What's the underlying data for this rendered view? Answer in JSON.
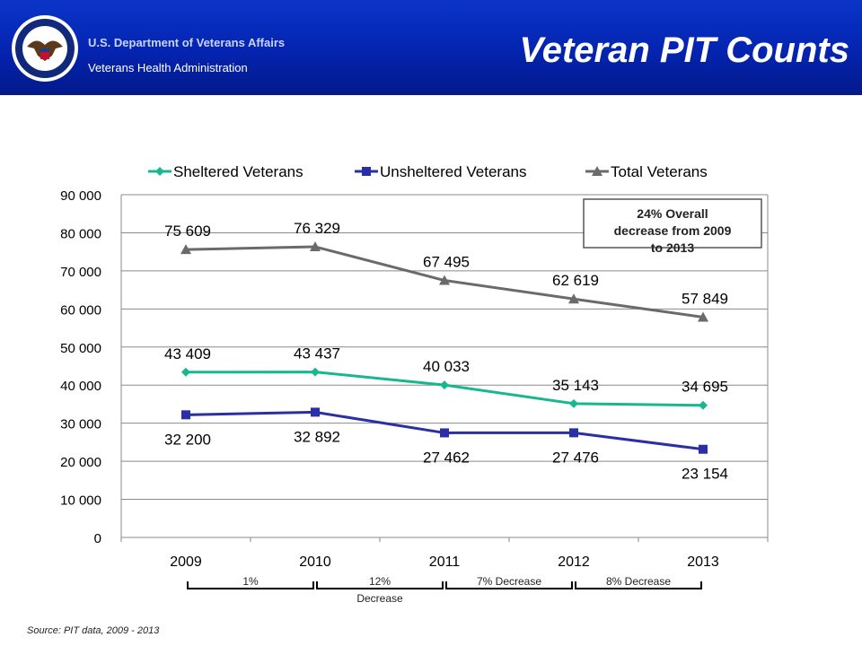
{
  "header": {
    "org_line1": "U.S. Department of Veterans Affairs",
    "org_line2": "Veterans Health Administration",
    "title": "Veteran PIT Counts",
    "colors": {
      "background": "#0424b0",
      "title_text": "#ffffff"
    },
    "logo": "va-seal-icon"
  },
  "chart_data": {
    "type": "line",
    "title": "",
    "xlabel": "",
    "ylabel": "",
    "categories": [
      "2009",
      "2010",
      "2011",
      "2012",
      "2013"
    ],
    "ylim": [
      0,
      90000
    ],
    "yticks": [
      0,
      10000,
      20000,
      30000,
      40000,
      50000,
      60000,
      70000,
      80000,
      90000
    ],
    "ytick_labels": [
      "0",
      "10 000",
      "20 000",
      "30 000",
      "40 000",
      "50 000",
      "60 000",
      "70 000",
      "80 000",
      "90 000"
    ],
    "grid": true,
    "legend_position": "top",
    "series": [
      {
        "name": "Sheltered Veterans",
        "color": "#17b890",
        "marker": "diamond",
        "values": [
          43409,
          43437,
          40033,
          35143,
          34695
        ],
        "labels": [
          "43 409",
          "43 437",
          "40 033",
          "35 143",
          "34 695"
        ]
      },
      {
        "name": "Unsheltered Veterans",
        "color": "#2a2fa6",
        "marker": "square",
        "values": [
          32200,
          32892,
          27462,
          27476,
          23154
        ],
        "labels": [
          "32 200",
          "32 892",
          "27 462",
          "27 476",
          "23 154"
        ]
      },
      {
        "name": "Total Veterans",
        "color": "#6a6a6a",
        "marker": "triangle",
        "values": [
          75609,
          76329,
          67495,
          62619,
          57849
        ],
        "labels": [
          "75 609",
          "76 329",
          "67 495",
          "62 619",
          "57 849"
        ]
      }
    ],
    "annotation": {
      "lines": [
        "24% Overall",
        "decrease from 2009",
        "to 2013"
      ]
    },
    "bracket_labels": [
      {
        "lines": [
          "1%"
        ]
      },
      {
        "lines": [
          "12%",
          "Decrease"
        ]
      },
      {
        "lines": [
          "7% Decrease"
        ]
      },
      {
        "lines": [
          "8% Decrease"
        ]
      }
    ]
  },
  "footer": {
    "source": "Source: PIT data, 2009 - 2013"
  }
}
